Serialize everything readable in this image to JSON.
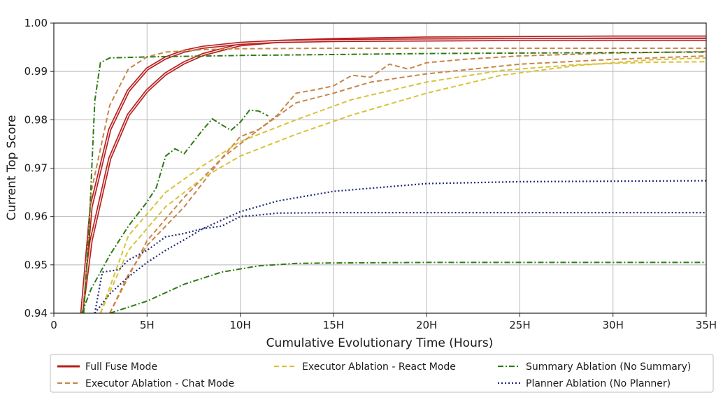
{
  "chart_data": {
    "type": "line",
    "title": "",
    "xlabel": "Cumulative Evolutionary Time (Hours)",
    "ylabel": "Current Top Score",
    "xlim": [
      0,
      35
    ],
    "ylim": [
      0.94,
      1.0
    ],
    "x_ticks": [
      0,
      5,
      10,
      15,
      20,
      25,
      30,
      35
    ],
    "x_tick_labels": [
      "0",
      "5H",
      "10H",
      "15H",
      "20H",
      "25H",
      "30H",
      "35H"
    ],
    "y_ticks": [
      0.94,
      0.95,
      0.96,
      0.97,
      0.98,
      0.99,
      1.0
    ],
    "y_tick_labels": [
      "0.94",
      "0.95",
      "0.96",
      "0.97",
      "0.98",
      "0.99",
      "1.00"
    ],
    "grid": true,
    "legend_position": "bottom",
    "series": [
      {
        "name": "Full Fuse Mode",
        "color": "#b81d1d",
        "style": "double-solid",
        "points": [
          [
            1.5,
            0.94
          ],
          [
            2,
            0.955
          ],
          [
            3,
            0.972
          ],
          [
            4,
            0.981
          ],
          [
            5,
            0.986
          ],
          [
            6,
            0.9895
          ],
          [
            7,
            0.9918
          ],
          [
            8,
            0.9935
          ],
          [
            10,
            0.9955
          ],
          [
            12,
            0.9962
          ],
          [
            15,
            0.9966
          ],
          [
            20,
            0.9969
          ],
          [
            25,
            0.997
          ],
          [
            30,
            0.9971
          ],
          [
            35,
            0.9971
          ]
        ]
      },
      {
        "name": "Full Fuse Mode",
        "color": "#b81d1d",
        "style": "double-solid",
        "points": [
          [
            1.5,
            0.94
          ],
          [
            2,
            0.962
          ],
          [
            3,
            0.978
          ],
          [
            4,
            0.986
          ],
          [
            5,
            0.9905
          ],
          [
            6,
            0.9928
          ],
          [
            7,
            0.9942
          ],
          [
            8,
            0.995
          ],
          [
            10,
            0.9958
          ],
          [
            12,
            0.9962
          ],
          [
            15,
            0.9964
          ],
          [
            20,
            0.9965
          ],
          [
            25,
            0.9966
          ],
          [
            30,
            0.9966
          ],
          [
            35,
            0.9966
          ]
        ]
      },
      {
        "name": "Executor Ablation - Chat Mode",
        "color": "#c8864a",
        "style": "dashed",
        "points": [
          [
            1.6,
            0.94
          ],
          [
            2,
            0.965
          ],
          [
            3,
            0.983
          ],
          [
            4,
            0.9905
          ],
          [
            5,
            0.993
          ],
          [
            6,
            0.994
          ],
          [
            8,
            0.9945
          ],
          [
            10,
            0.9947
          ],
          [
            15,
            0.9948
          ],
          [
            20,
            0.9948
          ],
          [
            25,
            0.9948
          ],
          [
            35,
            0.9948
          ]
        ]
      },
      {
        "name": "Executor Ablation - Chat Mode",
        "color": "#c8864a",
        "style": "dashed",
        "points": [
          [
            3,
            0.94
          ],
          [
            4,
            0.948
          ],
          [
            5,
            0.954
          ],
          [
            6,
            0.958
          ],
          [
            7,
            0.962
          ],
          [
            8,
            0.967
          ],
          [
            9,
            0.972
          ],
          [
            10,
            0.9765
          ],
          [
            11,
            0.978
          ],
          [
            12,
            0.981
          ],
          [
            13,
            0.9855
          ],
          [
            14,
            0.9862
          ],
          [
            15,
            0.987
          ],
          [
            16,
            0.9892
          ],
          [
            17,
            0.9888
          ],
          [
            18,
            0.9915
          ],
          [
            19,
            0.9905
          ],
          [
            20,
            0.9918
          ],
          [
            22,
            0.9925
          ],
          [
            25,
            0.9932
          ],
          [
            30,
            0.9938
          ],
          [
            35,
            0.9941
          ]
        ]
      },
      {
        "name": "Executor Ablation - Chat Mode",
        "color": "#c8864a",
        "style": "dashed",
        "points": [
          [
            3,
            0.94
          ],
          [
            5,
            0.955
          ],
          [
            7,
            0.964
          ],
          [
            9,
            0.972
          ],
          [
            11,
            0.978
          ],
          [
            13,
            0.9835
          ],
          [
            15,
            0.9855
          ],
          [
            17,
            0.9878
          ],
          [
            20,
            0.9895
          ],
          [
            25,
            0.9915
          ],
          [
            30,
            0.9925
          ],
          [
            35,
            0.9932
          ]
        ]
      },
      {
        "name": "Executor Ablation - React Mode",
        "color": "#d8c23c",
        "style": "dashed",
        "points": [
          [
            2.5,
            0.94
          ],
          [
            4,
            0.953
          ],
          [
            6,
            0.962
          ],
          [
            8,
            0.968
          ],
          [
            10,
            0.9725
          ],
          [
            13,
            0.977
          ],
          [
            16,
            0.981
          ],
          [
            20,
            0.9855
          ],
          [
            24,
            0.9892
          ],
          [
            28,
            0.9912
          ],
          [
            32,
            0.9924
          ],
          [
            35,
            0.9928
          ]
        ]
      },
      {
        "name": "Executor Ablation - React Mode",
        "color": "#d8c23c",
        "style": "dashed",
        "points": [
          [
            2.5,
            0.94
          ],
          [
            4,
            0.956
          ],
          [
            6,
            0.965
          ],
          [
            8,
            0.9705
          ],
          [
            10,
            0.9755
          ],
          [
            13,
            0.98
          ],
          [
            16,
            0.9842
          ],
          [
            20,
            0.9878
          ],
          [
            24,
            0.9902
          ],
          [
            28,
            0.9914
          ],
          [
            32,
            0.9919
          ],
          [
            35,
            0.992
          ]
        ]
      },
      {
        "name": "Summary Ablation (No Summary)",
        "color": "#2f7a14",
        "style": "dashdot",
        "points": [
          [
            1.6,
            0.94
          ],
          [
            1.9,
            0.958
          ],
          [
            2.2,
            0.984
          ],
          [
            2.5,
            0.9918
          ],
          [
            3,
            0.9928
          ],
          [
            5,
            0.993
          ],
          [
            10,
            0.9933
          ],
          [
            15,
            0.9935
          ],
          [
            20,
            0.9937
          ],
          [
            25,
            0.9938
          ],
          [
            30,
            0.9939
          ],
          [
            35,
            0.994
          ]
        ]
      },
      {
        "name": "Summary Ablation (No Summary)",
        "color": "#2f7a14",
        "style": "dashdot",
        "points": [
          [
            1.5,
            0.94
          ],
          [
            2,
            0.945
          ],
          [
            3,
            0.952
          ],
          [
            4,
            0.958
          ],
          [
            5,
            0.963
          ],
          [
            5.5,
            0.966
          ],
          [
            6,
            0.9725
          ],
          [
            6.5,
            0.974
          ],
          [
            7,
            0.973
          ],
          [
            7.5,
            0.9755
          ],
          [
            8,
            0.978
          ],
          [
            8.5,
            0.9802
          ],
          [
            9,
            0.979
          ],
          [
            9.5,
            0.9778
          ],
          [
            10,
            0.9795
          ],
          [
            10.5,
            0.982
          ],
          [
            11,
            0.9818
          ],
          [
            11.5,
            0.9808
          ]
        ]
      },
      {
        "name": "Summary Ablation (No Summary)",
        "color": "#2f7a14",
        "style": "dashdot",
        "points": [
          [
            3,
            0.94
          ],
          [
            5,
            0.9425
          ],
          [
            7,
            0.946
          ],
          [
            9,
            0.9485
          ],
          [
            11,
            0.9498
          ],
          [
            13,
            0.9503
          ],
          [
            15,
            0.9504
          ],
          [
            20,
            0.9505
          ],
          [
            25,
            0.9505
          ],
          [
            30,
            0.9505
          ],
          [
            35,
            0.9505
          ]
        ]
      },
      {
        "name": "Planner Ablation (No Planner)",
        "color": "#1f2a7a",
        "style": "dotted",
        "points": [
          [
            2.2,
            0.94
          ],
          [
            3,
            0.944
          ],
          [
            4,
            0.9475
          ],
          [
            5,
            0.9505
          ],
          [
            6,
            0.953
          ],
          [
            7,
            0.9552
          ],
          [
            8,
            0.9575
          ],
          [
            10,
            0.961
          ],
          [
            12,
            0.9632
          ],
          [
            15,
            0.9652
          ],
          [
            20,
            0.9668
          ],
          [
            25,
            0.9672
          ],
          [
            30,
            0.9673
          ],
          [
            35,
            0.9674
          ]
        ]
      },
      {
        "name": "Planner Ablation (No Planner)",
        "color": "#1f2a7a",
        "style": "dotted",
        "points": [
          [
            2.2,
            0.94
          ],
          [
            2.6,
            0.9485
          ],
          [
            3.5,
            0.949
          ],
          [
            4,
            0.951
          ],
          [
            5,
            0.953
          ],
          [
            6,
            0.9558
          ],
          [
            7,
            0.9565
          ],
          [
            8,
            0.9575
          ],
          [
            9,
            0.958
          ],
          [
            10,
            0.96
          ],
          [
            11,
            0.9603
          ],
          [
            12,
            0.9607
          ],
          [
            15,
            0.9608
          ],
          [
            20,
            0.9608
          ],
          [
            25,
            0.9608
          ],
          [
            30,
            0.9608
          ],
          [
            35,
            0.9608
          ]
        ]
      }
    ],
    "legend": [
      {
        "label": "Full Fuse Mode",
        "color": "#b81d1d",
        "style": "double-solid"
      },
      {
        "label": "Executor Ablation - Chat Mode",
        "color": "#c8864a",
        "style": "dashed"
      },
      {
        "label": "Executor Ablation - React Mode",
        "color": "#d8c23c",
        "style": "dashed"
      },
      {
        "label": "Summary Ablation (No Summary)",
        "color": "#2f7a14",
        "style": "dashdot"
      },
      {
        "label": "Planner Ablation (No Planner)",
        "color": "#1f2a7a",
        "style": "dotted"
      }
    ]
  }
}
